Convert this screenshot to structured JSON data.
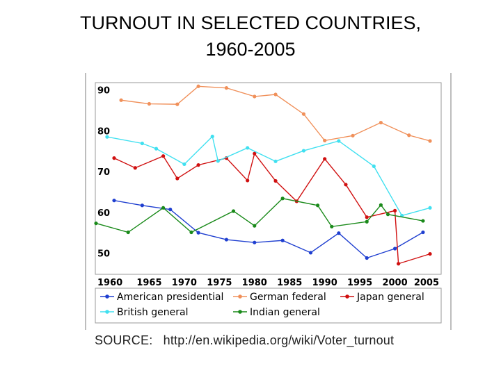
{
  "title": {
    "line1": "TURNOUT IN SELECTED COUNTRIES,",
    "line2": "1960-2005"
  },
  "source": {
    "label": "SOURCE:",
    "url": "http://en.wikipedia.org/wiki/Voter_turnout"
  },
  "chart_data": {
    "type": "line",
    "title": "",
    "xlabel": "",
    "ylabel": "",
    "xlim": [
      1960,
      2005
    ],
    "ylim": [
      45,
      92
    ],
    "x_ticks": [
      "1960",
      "1965",
      "1970",
      "1975",
      "1980",
      "1985",
      "1990",
      "1995",
      "2000",
      "2005"
    ],
    "y_ticks": [
      "90",
      "80",
      "70",
      "60",
      "50"
    ],
    "grid": false,
    "legend_position": "bottom",
    "series": [
      {
        "name": "American presidential",
        "color": "#1f3fd0",
        "x": [
          1960,
          1964,
          1968,
          1972,
          1976,
          1980,
          1984,
          1988,
          1992,
          1996,
          2000,
          2004
        ],
        "y": [
          63.1,
          61.9,
          60.9,
          55.2,
          53.5,
          52.8,
          53.3,
          50.3,
          55.1,
          49.0,
          51.3,
          55.3
        ]
      },
      {
        "name": "German federal",
        "color": "#f0905a",
        "x": [
          1961,
          1965,
          1969,
          1972,
          1976,
          1980,
          1983,
          1987,
          1990,
          1994,
          1998,
          2002,
          2005
        ],
        "y": [
          87.7,
          86.8,
          86.7,
          91.1,
          90.7,
          88.6,
          89.1,
          84.3,
          77.8,
          79.0,
          82.2,
          79.1,
          77.7
        ]
      },
      {
        "name": "Japan general",
        "color": "#d01010",
        "x": [
          1960,
          1963,
          1967,
          1969,
          1972,
          1976,
          1979,
          1980,
          1983,
          1986,
          1990,
          1993,
          1996,
          2000,
          2000.5,
          2005
        ],
        "y": [
          73.5,
          71.1,
          74.0,
          68.5,
          71.8,
          73.5,
          68.0,
          74.6,
          67.9,
          62.9,
          73.3,
          67.0,
          59.0,
          60.6,
          47.6,
          50.0
        ]
      },
      {
        "name": "British general",
        "color": "#40e0f0",
        "x": [
          1959,
          1964,
          1966,
          1970,
          1974,
          1974.8,
          1979,
          1983,
          1987,
          1992,
          1997,
          2001,
          2005
        ],
        "y": [
          78.7,
          77.1,
          75.8,
          72.0,
          78.8,
          72.8,
          76.0,
          72.7,
          75.3,
          77.7,
          71.5,
          59.4,
          61.3
        ]
      },
      {
        "name": "Indian general",
        "color": "#1a8a1a",
        "x": [
          1957,
          1962,
          1967,
          1971,
          1977,
          1980,
          1984,
          1989,
          1991,
          1996,
          1998,
          1999,
          2004
        ],
        "y": [
          57.5,
          55.3,
          61.3,
          55.3,
          60.5,
          56.9,
          63.6,
          61.9,
          56.7,
          57.9,
          62.0,
          59.7,
          58.1
        ]
      }
    ]
  }
}
